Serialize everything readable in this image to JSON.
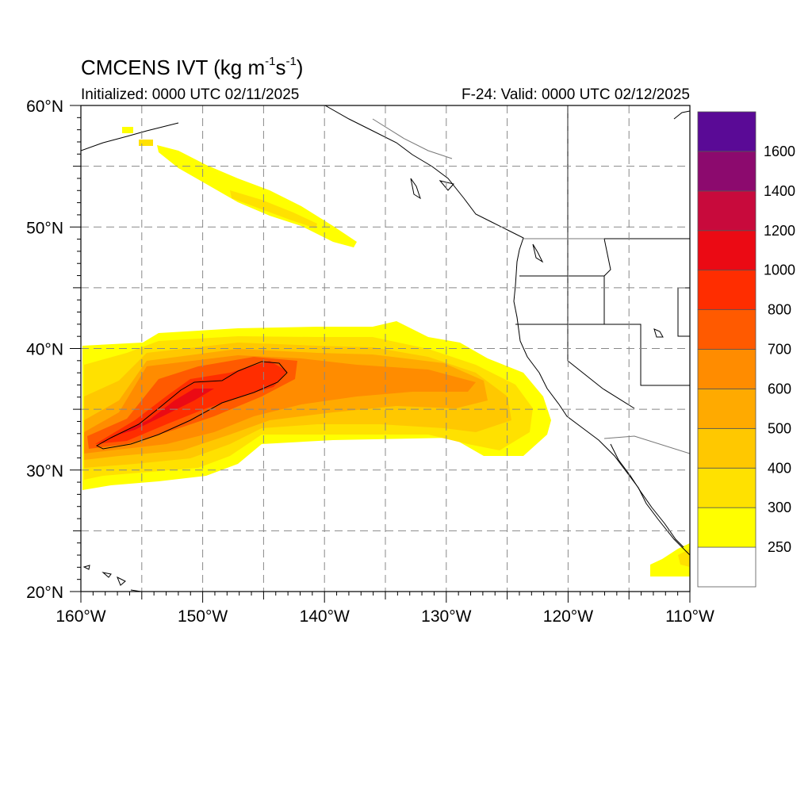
{
  "header": {
    "title_main": "CMCENS IVT (kg m",
    "title_sup1": "-1",
    "title_mid": "s",
    "title_sup2": "-1",
    "title_end": ")",
    "init_text": "Initialized: 0000 UTC 02/11/2025",
    "valid_text": "F-24: Valid: 0000 UTC 02/12/2025"
  },
  "map": {
    "lon_range": [
      -160,
      -110
    ],
    "lat_range": [
      20,
      60
    ],
    "lon_ticks": [
      "160°W",
      "150°W",
      "140°W",
      "130°W",
      "120°W",
      "110°W"
    ],
    "lat_ticks": [
      "20°N",
      "30°N",
      "40°N",
      "50°N",
      "60°N"
    ],
    "grid": "dashed",
    "contour_value": 800
  },
  "colorbar": {
    "labels": [
      "250",
      "300",
      "400",
      "500",
      "600",
      "700",
      "800",
      "1000",
      "1200",
      "1400",
      "1600"
    ],
    "colors": [
      "#ffffff",
      "#ffff00",
      "#ffe100",
      "#ffc800",
      "#ffaa00",
      "#ff8c00",
      "#ff5a00",
      "#ff2d00",
      "#eb0a14",
      "#c80a3c",
      "#8c0a6e",
      "#5a0a96"
    ]
  },
  "ivt_field": {
    "units": "kg m-1 s-1",
    "features": [
      {
        "region": "Atmospheric river core near 33-38N, 158-143W",
        "max_category": "1000-1200"
      },
      {
        "region": "Main plume extending east to ~122W near 33-40N",
        "max_category": "600-700"
      },
      {
        "region": "Narrow band 48-57N, 157-137W",
        "max_category": "250-300"
      },
      {
        "region": "Southwest Mexico coast ~22N, 113-110W",
        "max_category": "250-300"
      }
    ]
  }
}
